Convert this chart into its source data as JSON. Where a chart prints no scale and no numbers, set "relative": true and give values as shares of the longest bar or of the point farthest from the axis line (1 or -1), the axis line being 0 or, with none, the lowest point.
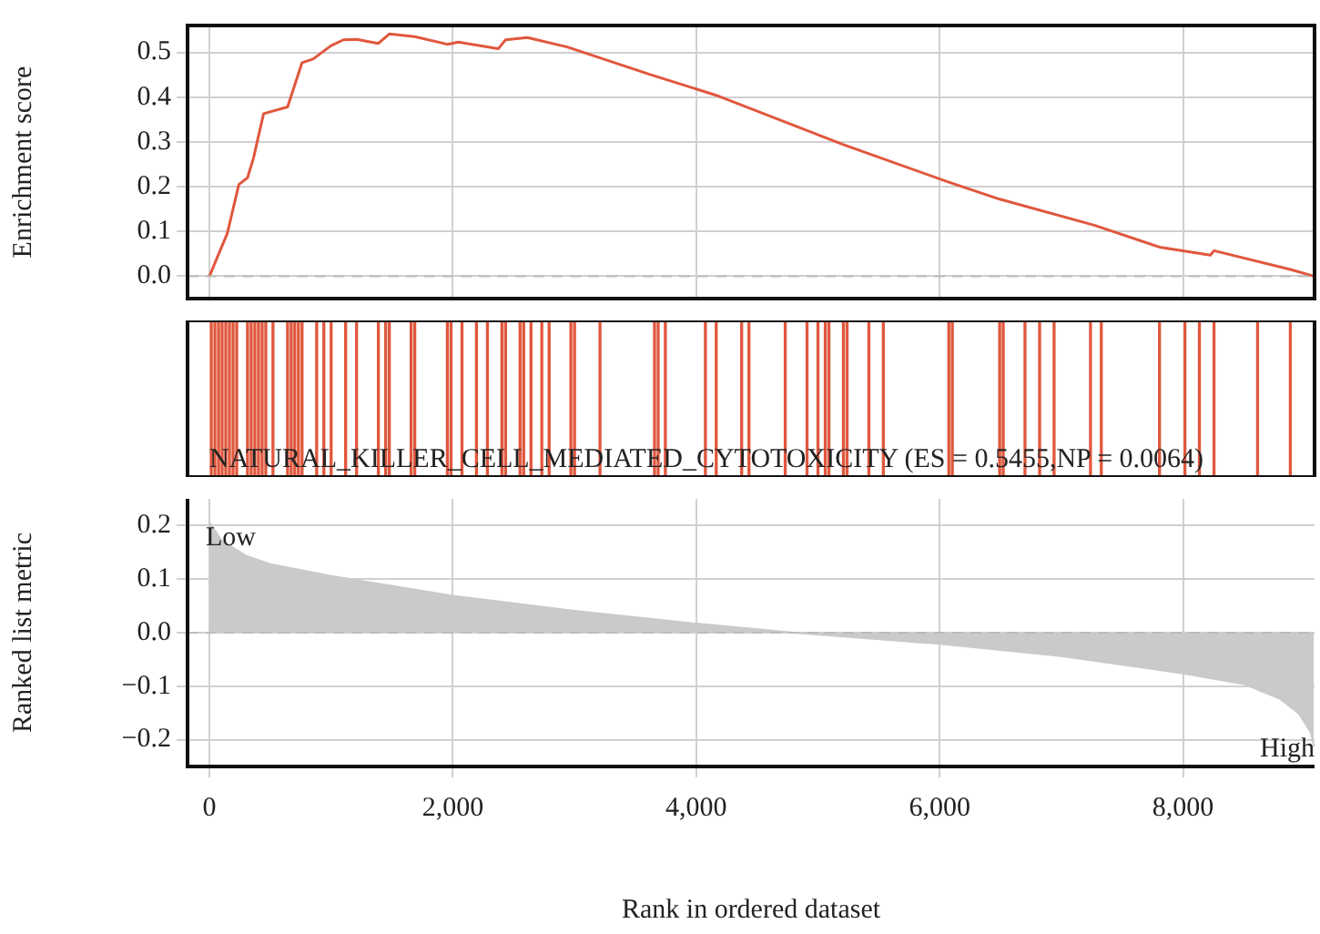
{
  "chart_data": [
    {
      "type": "line",
      "ylabel": "Enrichment score",
      "x": [
        0,
        146,
        242,
        313,
        361,
        445,
        642,
        761,
        851,
        1000,
        1101,
        1209,
        1388,
        1478,
        1687,
        1955,
        2045,
        2373,
        2433,
        2612,
        2940,
        3627,
        4164,
        5209,
        6075,
        6493,
        7269,
        7806,
        8224,
        8254,
        8881,
        9075
      ],
      "values": [
        0,
        0.095,
        0.205,
        0.22,
        0.263,
        0.363,
        0.378,
        0.477,
        0.485,
        0.515,
        0.528,
        0.529,
        0.52,
        0.541,
        0.535,
        0.518,
        0.523,
        0.508,
        0.528,
        0.533,
        0.512,
        0.45,
        0.404,
        0.294,
        0.21,
        0.172,
        0.114,
        0.065,
        0.047,
        0.057,
        0.015,
        0
      ],
      "color": "#e0573d",
      "xlim": [
        -180,
        9080
      ],
      "xticks": [
        0,
        2000,
        4000,
        6000,
        8000
      ],
      "ylim": [
        -0.05,
        0.56
      ],
      "yticks": [
        {
          "value": 0,
          "label": "0.0"
        },
        0.1,
        0.2,
        0.3,
        0.4,
        0.5
      ],
      "grid": true,
      "tick_labels": "y",
      "marker": "none",
      "ref_lines": [
        {
          "axis": "y",
          "value": 0,
          "color": "#bbbbbb",
          "line_style": "dashed"
        }
      ]
    },
    {
      "type": "bar",
      "x": [
        15,
        45,
        75,
        104,
        134,
        164,
        194,
        224,
        313,
        343,
        373,
        403,
        433,
        463,
        522,
        642,
        672,
        701,
        731,
        761,
        881,
        940,
        1000,
        1119,
        1209,
        1388,
        1448,
        1478,
        1657,
        1687,
        1955,
        1985,
        2075,
        2194,
        2284,
        2403,
        2433,
        2552,
        2582,
        2642,
        2731,
        2791,
        2970,
        3000,
        3209,
        3657,
        3687,
        3746,
        4075,
        4164,
        4373,
        4433,
        4731,
        4910,
        5000,
        5060,
        5090,
        5209,
        5239,
        5418,
        5537,
        6075,
        6104,
        6493,
        6522,
        6701,
        6821,
        6940,
        7239,
        7328,
        7806,
        8015,
        8134,
        8254,
        8612,
        8881
      ],
      "values": [
        1,
        1,
        1,
        1,
        1,
        1,
        1,
        1,
        1,
        1,
        1,
        1,
        1,
        1,
        1,
        1,
        1,
        1,
        1,
        1,
        1,
        1,
        1,
        1,
        1,
        1,
        1,
        1,
        1,
        1,
        1,
        1,
        1,
        1,
        1,
        1,
        1,
        1,
        1,
        1,
        1,
        1,
        1,
        1,
        1,
        1,
        1,
        1,
        1,
        1,
        1,
        1,
        1,
        1,
        1,
        1,
        1,
        1,
        1,
        1,
        1,
        1,
        1,
        1,
        1,
        1,
        1,
        1,
        1,
        1,
        1,
        1,
        1,
        1,
        1,
        1
      ],
      "color": "#e0573d",
      "relative": true,
      "xlim": [
        -180,
        9080
      ],
      "tick_labels": false,
      "annotations": [
        "NATURAL_KILLER_CELL_MEDIATED_CYTOTOXICITY (ES = 0.5455,NP = 0.0064)"
      ]
    },
    {
      "type": "area",
      "xlabel": "Rank in ordered dataset",
      "ylabel": "Ranked list metric",
      "x": [
        0,
        100,
        300,
        500,
        1000,
        2000,
        3000,
        4000,
        4800,
        6000,
        7000,
        8000,
        8500,
        8800,
        8950,
        9050,
        9075
      ],
      "values": [
        0.206,
        0.172,
        0.144,
        0.128,
        0.106,
        0.069,
        0.041,
        0.017,
        0,
        -0.021,
        -0.044,
        -0.076,
        -0.096,
        -0.124,
        -0.151,
        -0.186,
        -0.213
      ],
      "color": "#cbc9ca",
      "xlim": [
        -180,
        9080
      ],
      "xticks": [
        0,
        {
          "value": 2000,
          "label": "2,000"
        },
        {
          "value": 4000,
          "label": "4,000"
        },
        {
          "value": 6000,
          "label": "6,000"
        },
        {
          "value": 8000,
          "label": "8,000"
        }
      ],
      "ylim": [
        -0.25,
        0.25
      ],
      "yticks": [
        -0.2,
        -0.1,
        {
          "value": 0,
          "label": "0.0"
        },
        0.1,
        0.2
      ],
      "grid": true,
      "ref_lines": [
        {
          "axis": "y",
          "value": 0,
          "color": "#bbbbbb",
          "line_style": "dashed"
        }
      ],
      "annotations": [
        "Low",
        "High"
      ]
    }
  ]
}
